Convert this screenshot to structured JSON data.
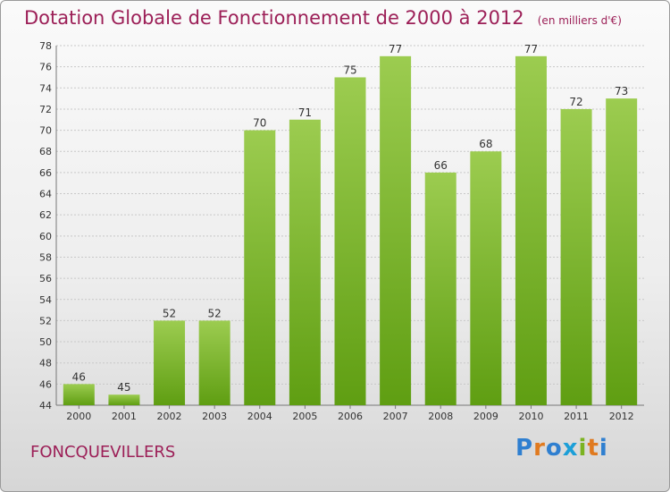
{
  "title": "Dotation Globale de Fonctionnement de 2000 à 2012",
  "unit": "(en milliers d'€)",
  "commune": "FONCQUEVILLERS",
  "logo": "Proxiti",
  "colors": {
    "title": "#9c1f57",
    "bar_light": "#9ccc50",
    "bar_dark": "#5f9e12",
    "grid": "#c8c8c8"
  },
  "chart_data": {
    "type": "bar",
    "title": "Dotation Globale de Fonctionnement de 2000 à 2012",
    "subtitle": "(en milliers d'€)",
    "xlabel": "",
    "ylabel": "",
    "categories": [
      "2000",
      "2001",
      "2002",
      "2003",
      "2004",
      "2005",
      "2006",
      "2007",
      "2008",
      "2009",
      "2010",
      "2011",
      "2012"
    ],
    "values": [
      46,
      45,
      52,
      52,
      70,
      71,
      75,
      77,
      66,
      68,
      77,
      72,
      73
    ],
    "ylim": [
      44,
      78
    ],
    "yticks": [
      44,
      46,
      48,
      50,
      52,
      54,
      56,
      58,
      60,
      62,
      64,
      66,
      68,
      70,
      72,
      74,
      76,
      78
    ],
    "grid": true,
    "data_labels": true
  }
}
